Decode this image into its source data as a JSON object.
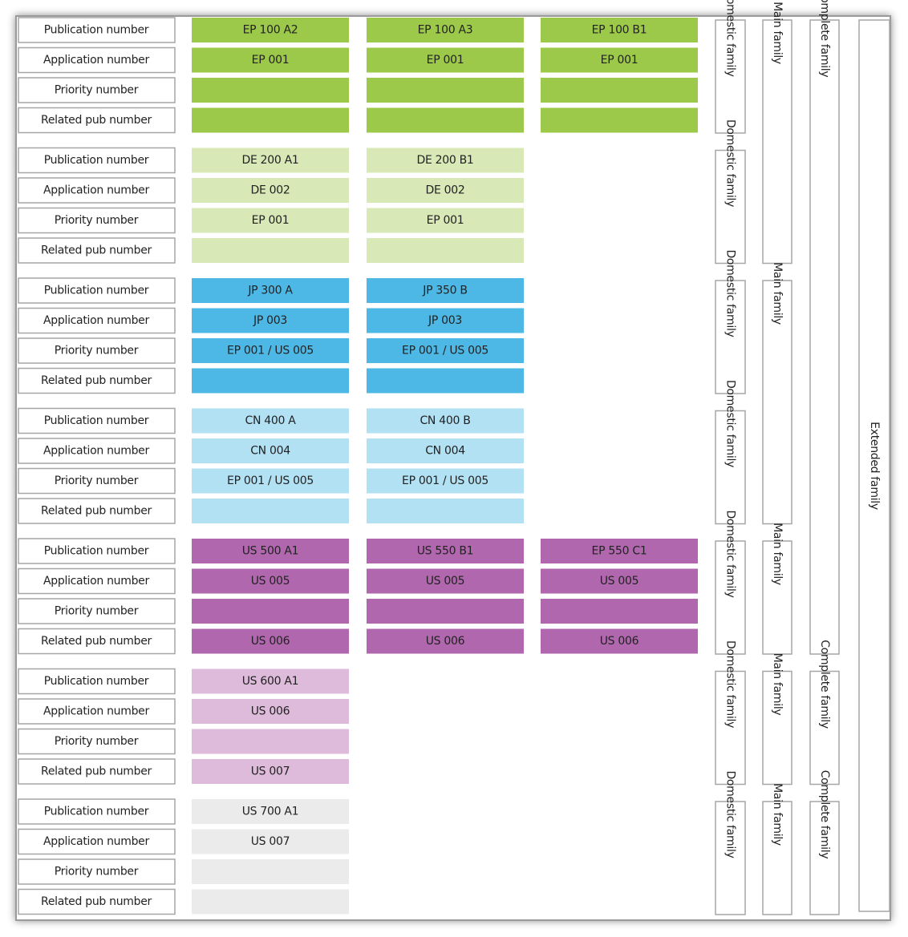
{
  "groups": [
    {
      "color": "#9dc94a",
      "rows": [
        {
          "label": "Publication number",
          "cells": [
            "EP 100 A2",
            "EP 100 A3",
            "EP 100 B1"
          ]
        },
        {
          "label": "Application number",
          "cells": [
            "EP 001",
            "EP 001",
            "EP 001"
          ]
        },
        {
          "label": "Priority number",
          "cells": [
            null,
            null,
            null
          ]
        },
        {
          "label": "Related pub number",
          "cells": [
            null,
            null,
            null
          ]
        }
      ]
    },
    {
      "color": "#d8e8b6",
      "rows": [
        {
          "label": "Publication number",
          "cells": [
            "DE 200 A1",
            "DE 200 B1"
          ]
        },
        {
          "label": "Application number",
          "cells": [
            "DE 002",
            "DE 002"
          ]
        },
        {
          "label": "Priority number",
          "cells": [
            "EP 001",
            "EP 001"
          ]
        },
        {
          "label": "Related pub number",
          "cells": [
            null,
            null
          ]
        }
      ]
    },
    {
      "color": "#4db8e5",
      "rows": [
        {
          "label": "Publication number",
          "cells": [
            "JP 300 A",
            "JP 350 B"
          ]
        },
        {
          "label": "Application number",
          "cells": [
            "JP 003",
            "JP 003"
          ]
        },
        {
          "label": "Priority number",
          "cells": [
            "EP 001 / US 005",
            "EP 001 / US 005"
          ]
        },
        {
          "label": "Related pub number",
          "cells": [
            null,
            null
          ]
        }
      ]
    },
    {
      "color": "#b3e1f4",
      "rows": [
        {
          "label": "Publication number",
          "cells": [
            "CN 400 A",
            "CN 400 B"
          ]
        },
        {
          "label": "Application number",
          "cells": [
            "CN 004",
            "CN 004"
          ]
        },
        {
          "label": "Priority number",
          "cells": [
            "EP 001 / US 005",
            "EP 001 / US 005"
          ]
        },
        {
          "label": "Related pub number",
          "cells": [
            null,
            null
          ]
        }
      ]
    },
    {
      "color": "#b067ae",
      "rows": [
        {
          "label": "Publication number",
          "cells": [
            "US 500 A1",
            "US 550 B1",
            "EP 550 C1"
          ]
        },
        {
          "label": "Application number",
          "cells": [
            "US 005",
            "US 005",
            "US 005"
          ]
        },
        {
          "label": "Priority number",
          "cells": [
            null,
            null,
            null
          ]
        },
        {
          "label": "Related pub number",
          "cells": [
            "US 006",
            "US 006",
            "US 006"
          ]
        }
      ]
    },
    {
      "color": "#dfbbdb",
      "rows": [
        {
          "label": "Publication number",
          "cells": [
            "US 600 A1"
          ]
        },
        {
          "label": "Application number",
          "cells": [
            "US 006"
          ]
        },
        {
          "label": "Priority number",
          "cells": [
            null
          ]
        },
        {
          "label": "Related pub number",
          "cells": [
            "US 007"
          ]
        }
      ]
    },
    {
      "color": "#ebebeb",
      "rows": [
        {
          "label": "Publication number",
          "cells": [
            "US 700 A1"
          ]
        },
        {
          "label": "Application number",
          "cells": [
            "US 007"
          ]
        },
        {
          "label": "Priority number",
          "cells": [
            null
          ]
        },
        {
          "label": "Related pub number",
          "cells": [
            null
          ]
        }
      ]
    }
  ],
  "domestic_families": [
    "Domestic family",
    "Domestic family",
    "Domestic family",
    "Domestic family",
    "Domestic family",
    "Domestic family",
    "Domestic family"
  ],
  "main_families": [
    "Main family",
    "Main family",
    "Main family",
    "Main family",
    "Main family"
  ],
  "complete_families": [
    "Complete family",
    "Complete family",
    "Complete family"
  ],
  "extended_family": "Extended family"
}
